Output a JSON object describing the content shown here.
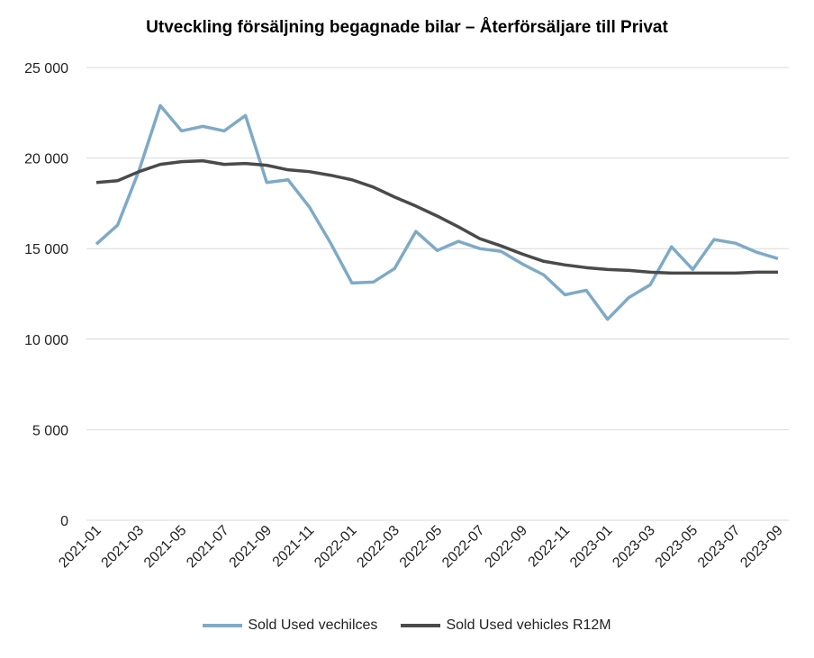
{
  "chart_data": {
    "type": "line",
    "title": "Utveckling försäljning begagnade bilar – Återförsäljare till Privat",
    "xlabel": "",
    "ylabel": "",
    "ylim": [
      0,
      25000
    ],
    "yticks": [
      0,
      5000,
      10000,
      15000,
      20000,
      25000
    ],
    "ytick_labels": [
      "0",
      "5 000",
      "10 000",
      "15 000",
      "20 000",
      "25 000"
    ],
    "grid": true,
    "legend": "bottom",
    "x": [
      "2021-01",
      "2021-02",
      "2021-03",
      "2021-04",
      "2021-05",
      "2021-06",
      "2021-07",
      "2021-08",
      "2021-09",
      "2021-10",
      "2021-11",
      "2021-12",
      "2022-01",
      "2022-02",
      "2022-03",
      "2022-04",
      "2022-05",
      "2022-06",
      "2022-07",
      "2022-08",
      "2022-09",
      "2022-10",
      "2022-11",
      "2022-12",
      "2023-01",
      "2023-02",
      "2023-03",
      "2023-04",
      "2023-05",
      "2023-06",
      "2023-07",
      "2023-08",
      "2023-09"
    ],
    "xtick_labels": [
      "2021-01",
      "2021-03",
      "2021-05",
      "2021-07",
      "2021-09",
      "2021-11",
      "2022-01",
      "2022-03",
      "2022-05",
      "2022-07",
      "2022-09",
      "2022-11",
      "2023-01",
      "2023-03",
      "2023-05",
      "2023-07",
      "2023-09"
    ],
    "series": [
      {
        "name": "Sold Used vechilces",
        "color": "#7eaac6",
        "values": [
          15250,
          16300,
          19300,
          22900,
          21500,
          21750,
          21500,
          22350,
          18650,
          18800,
          17300,
          15300,
          13100,
          13150,
          13900,
          15950,
          14900,
          15400,
          15000,
          14850,
          14150,
          13550,
          12450,
          12700,
          11100,
          12300,
          13000,
          15100,
          13850,
          15500,
          15300,
          14800,
          14450
        ]
      },
      {
        "name": "Sold Used vehicles R12M",
        "color": "#4a4a4a",
        "values": [
          18650,
          18750,
          19250,
          19650,
          19800,
          19850,
          19650,
          19700,
          19600,
          19350,
          19250,
          19050,
          18800,
          18400,
          17850,
          17350,
          16800,
          16200,
          15550,
          15150,
          14700,
          14300,
          14100,
          13950,
          13850,
          13800,
          13700,
          13650,
          13650,
          13650,
          13650,
          13700,
          13700
        ]
      }
    ]
  }
}
